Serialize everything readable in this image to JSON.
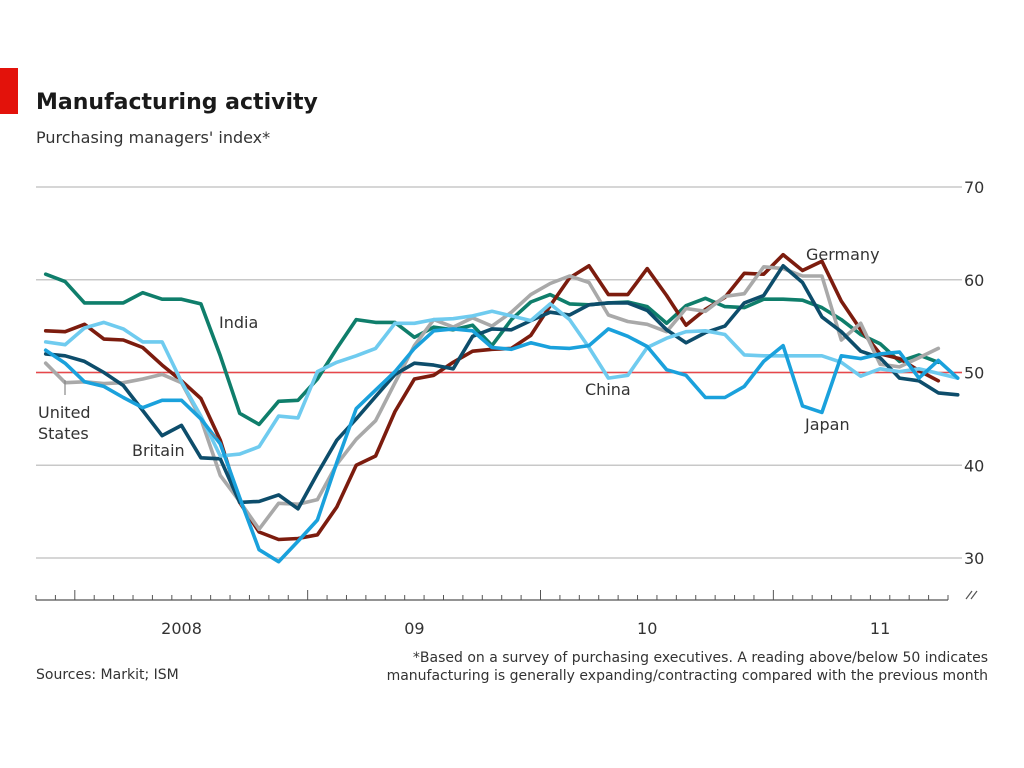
{
  "header": {
    "title": "Manufacturing activity",
    "subtitle": "Purchasing managers' index*"
  },
  "footer": {
    "sources": "Sources: Markit; ISM",
    "footnote": "*Based on a survey of purchasing executives. A reading above/below 50 indicates manufacturing is generally expanding/contracting compared with the previous month"
  },
  "chart_data": {
    "type": "line",
    "ylim": [
      30,
      70
    ],
    "yticks": [
      30,
      40,
      50,
      60,
      70
    ],
    "ytick_labels": [
      "30",
      "40",
      "50",
      "60",
      "70"
    ],
    "reference_line": {
      "y": 50,
      "color": "#e8474b"
    },
    "x_start": "2007-11",
    "x_end": "2011-09",
    "x_tick_labels": [
      {
        "label": "2008",
        "month": "2008-06"
      },
      {
        "label": "09",
        "month": "2009-06"
      },
      {
        "label": "10",
        "month": "2010-06"
      },
      {
        "label": "11",
        "month": "2011-06"
      }
    ],
    "grid": true,
    "series": [
      {
        "name": "India",
        "color": "#0f7e6b",
        "values": [
          60.6,
          59.8,
          57.5,
          57.5,
          57.5,
          58.6,
          57.9,
          57.9,
          57.4,
          51.8,
          45.6,
          44.4,
          46.9,
          47.0,
          49.3,
          52.6,
          55.7,
          55.4,
          55.4,
          53.8,
          54.9,
          54.6,
          55.1,
          52.9,
          55.7,
          57.6,
          58.4,
          57.4,
          57.3,
          57.5,
          57.6,
          57.1,
          55.3,
          57.2,
          58.0,
          57.1,
          57.0,
          57.9,
          57.9,
          57.8,
          57.0,
          55.7,
          54.1,
          53.1,
          51.2,
          51.9,
          51.1
        ]
      },
      {
        "name": "Germany",
        "color": "#7c1c0e",
        "values": [
          54.5,
          54.4,
          55.2,
          53.6,
          53.5,
          52.7,
          50.8,
          49.1,
          47.2,
          42.7,
          36.0,
          32.8,
          32.0,
          32.1,
          32.5,
          35.5,
          40.0,
          41.0,
          45.8,
          49.3,
          49.7,
          51.1,
          52.3,
          52.5,
          52.6,
          54.0,
          57.2,
          60.2,
          61.5,
          58.4,
          58.4,
          61.2,
          58.3,
          55.1,
          56.8,
          58.1,
          60.7,
          60.6,
          62.7,
          61.0,
          62.0,
          57.7,
          54.6,
          52.0,
          51.5,
          50.2,
          49.1
        ]
      },
      {
        "name": "United States",
        "color": "#a9a9a9",
        "values": [
          51.0,
          48.9,
          49.0,
          48.8,
          48.9,
          49.3,
          49.8,
          48.9,
          45.0,
          38.9,
          36.1,
          33.1,
          35.9,
          35.8,
          36.3,
          40.1,
          42.8,
          44.8,
          48.9,
          52.9,
          55.7,
          54.9,
          55.9,
          55.0,
          56.5,
          58.4,
          59.6,
          60.4,
          59.7,
          56.2,
          55.5,
          55.2,
          54.4,
          56.9,
          56.6,
          58.2,
          58.5,
          61.4,
          61.2,
          60.4,
          60.4,
          53.5,
          55.3,
          50.9,
          50.6,
          51.6,
          52.6
        ]
      },
      {
        "name": "Britain",
        "color": "#0d4d6b",
        "values": [
          52.0,
          51.8,
          51.2,
          50.0,
          48.6,
          45.9,
          43.2,
          44.3,
          40.8,
          40.7,
          36.0,
          36.1,
          36.8,
          35.3,
          39.1,
          42.7,
          45.0,
          47.4,
          49.8,
          51.0,
          50.8,
          50.4,
          53.9,
          54.7,
          54.6,
          55.6,
          56.5,
          56.2,
          57.3,
          57.5,
          57.5,
          56.7,
          54.6,
          53.2,
          54.3,
          55.0,
          57.5,
          58.3,
          61.5,
          59.7,
          56.0,
          54.4,
          52.3,
          51.6,
          49.4,
          49.1,
          47.8,
          47.6
        ]
      },
      {
        "name": "China",
        "color": "#6fcbef",
        "values": [
          53.3,
          53.0,
          54.8,
          55.4,
          54.7,
          53.3,
          53.3,
          49.0,
          45.3,
          41.0,
          41.2,
          42.0,
          45.3,
          45.1,
          50.1,
          51.1,
          51.8,
          52.6,
          55.3,
          55.3,
          55.7,
          55.8,
          56.1,
          56.6,
          56.1,
          55.6,
          57.4,
          55.7,
          52.7,
          49.4,
          49.7,
          52.7,
          53.7,
          54.4,
          54.5,
          54.1,
          51.9,
          51.8,
          51.8,
          51.8,
          51.8,
          51.1,
          49.6,
          50.4,
          50.1,
          50.4,
          49.9,
          49.4
        ]
      },
      {
        "name": "Japan",
        "color": "#1aa1dc",
        "values": [
          52.4,
          51.0,
          49.0,
          48.5,
          47.3,
          46.2,
          47.0,
          47.0,
          45.0,
          42.3,
          36.5,
          30.9,
          29.6,
          31.8,
          34.1,
          40.3,
          46.1,
          48.1,
          50.1,
          52.6,
          54.5,
          54.7,
          54.5,
          52.7,
          52.5,
          53.2,
          52.7,
          52.6,
          52.9,
          54.7,
          53.9,
          52.8,
          50.3,
          49.7,
          47.3,
          47.3,
          48.5,
          51.2,
          52.9,
          46.4,
          45.7,
          51.8,
          51.5,
          52.0,
          52.2,
          49.4,
          51.3,
          49.4
        ]
      }
    ],
    "labels": {
      "india": "India",
      "germany": "Germany",
      "us_line1": "United",
      "us_line2": "States",
      "britain": "Britain",
      "china": "China",
      "japan": "Japan"
    }
  }
}
